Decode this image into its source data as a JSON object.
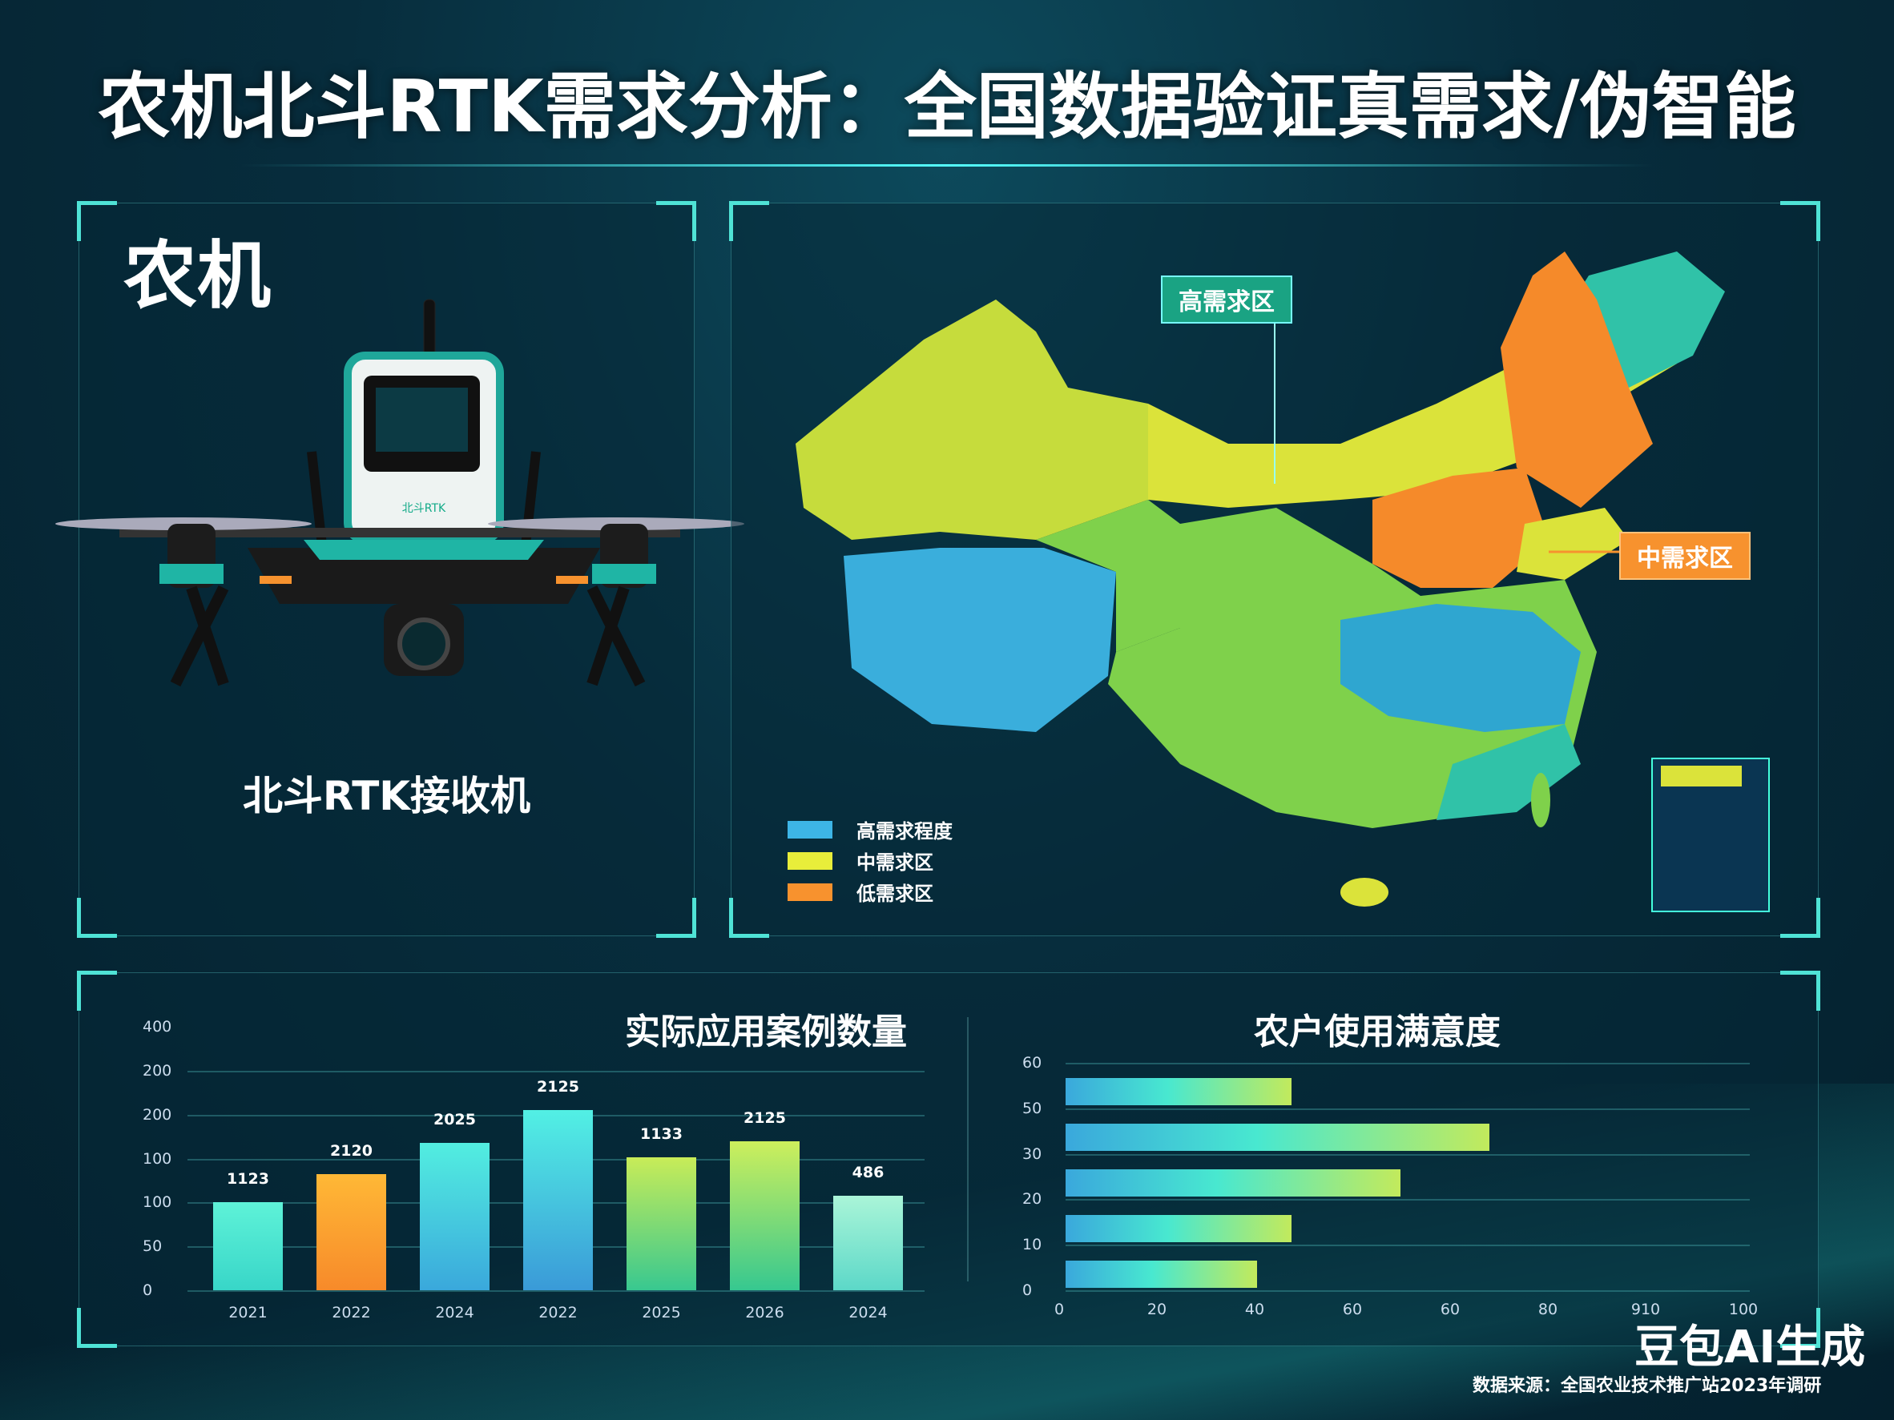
{
  "title": "农机北斗RTK需求分析：全国数据验证真需求/伪智能",
  "left_panel": {
    "heading": "农机",
    "device_label": "北斗RTK接收机",
    "device_screen_brand": "北斗RTK"
  },
  "map": {
    "tags": {
      "high": "高需求区",
      "mid": "中需求区"
    },
    "legend": [
      {
        "label": "高需求程度",
        "color": "#3db5e6"
      },
      {
        "label": "中需求区",
        "color": "#e8ee3a"
      },
      {
        "label": "低需求区",
        "color": "#f7922e"
      }
    ],
    "colors": {
      "blue": "#3aaedc",
      "green": "#7fd14b",
      "yellow": "#dbe33a",
      "orange": "#f58a2a",
      "teal": "#30c2a8"
    }
  },
  "chart_data": [
    {
      "type": "bar",
      "title": "实际应用案例数量",
      "categories": [
        "2021",
        "2022",
        "2024",
        "2022",
        "2025",
        "2026",
        "2024"
      ],
      "y_tick_labels": [
        "0",
        "50",
        "100",
        "100",
        "200",
        "200",
        "400"
      ],
      "values_in_gridlines": [
        2.0,
        2.65,
        3.35,
        4.1,
        3.02,
        3.4,
        2.15
      ],
      "data_labels": [
        "1123",
        "2120",
        "2025",
        "2125",
        "1133",
        "2125",
        "486"
      ],
      "colors": [
        [
          "#5ef2d8",
          "#38d6c8"
        ],
        [
          "#ffb836",
          "#f78a2a"
        ],
        [
          "#52eee0",
          "#3aa8dc"
        ],
        [
          "#52f0e4",
          "#3a9ad8"
        ],
        [
          "#c8ec58",
          "#38c890"
        ],
        [
          "#cdef5c",
          "#36c890"
        ],
        [
          "#aaf5d8",
          "#5cd8c8"
        ]
      ],
      "grid": true
    },
    {
      "type": "bar",
      "orientation": "horizontal",
      "title": "农户使用满意度",
      "y_tick_labels": [
        "0",
        "10",
        "20",
        "30",
        "50",
        "60"
      ],
      "x_tick_labels": [
        "0",
        "20",
        "40",
        "60",
        "60",
        "80",
        "910",
        "100"
      ],
      "values_percent_of_axis": [
        33,
        62,
        49,
        33,
        28
      ],
      "grid": true
    }
  ],
  "footer": {
    "source": "数据来源：全国农业技术推广站2023年调研",
    "watermark": "豆包AI生成"
  }
}
